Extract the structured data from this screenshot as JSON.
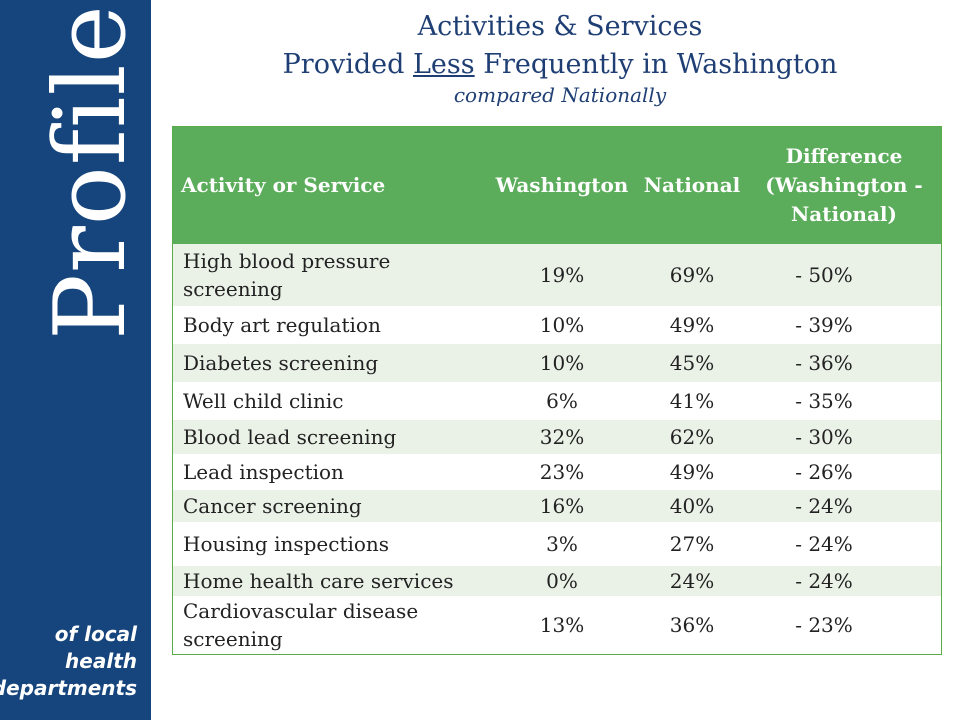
{
  "sidebar": {
    "big_word": "Profile",
    "sub_lines": [
      "of local",
      "health",
      "departments"
    ]
  },
  "title": {
    "line1": "Activities & Services",
    "line2_before": "Provided ",
    "line2_emph": "Less",
    "line2_after": " Frequently in Washington",
    "line3": "compared Nationally"
  },
  "colors": {
    "sidebar": "#15457c",
    "header": "#5bad5b",
    "stripe": "#eaf2e8",
    "title": "#1f3f74"
  },
  "table": {
    "headers": {
      "activity": "Activity or Service",
      "washington": "Washington",
      "national": "National",
      "difference": "Difference (Washington - National)"
    },
    "rows": [
      {
        "activity": "High blood pressure screening",
        "washington": "19%",
        "national": "69%",
        "difference": "- 50%"
      },
      {
        "activity": "Body art regulation",
        "washington": "10%",
        "national": "49%",
        "difference": "- 39%"
      },
      {
        "activity": "Diabetes screening",
        "washington": "10%",
        "national": "45%",
        "difference": "- 36%"
      },
      {
        "activity": "Well child clinic",
        "washington": "6%",
        "national": "41%",
        "difference": "- 35%"
      },
      {
        "activity": "Blood lead screening",
        "washington": "32%",
        "national": "62%",
        "difference": "- 30%"
      },
      {
        "activity": "Lead inspection",
        "washington": "23%",
        "national": "49%",
        "difference": "- 26%"
      },
      {
        "activity": "Cancer screening",
        "washington": "16%",
        "national": "40%",
        "difference": "- 24%"
      },
      {
        "activity": "Housing inspections",
        "washington": "3%",
        "national": "27%",
        "difference": "- 24%"
      },
      {
        "activity": "Home health care services",
        "washington": "0%",
        "national": "24%",
        "difference": "- 24%"
      },
      {
        "activity": "Cardiovascular disease screening",
        "washington": "13%",
        "national": "36%",
        "difference": "- 23%"
      }
    ]
  }
}
